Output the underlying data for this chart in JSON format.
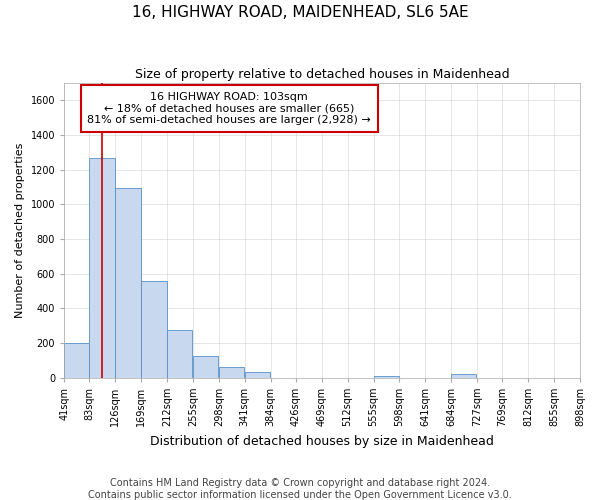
{
  "title": "16, HIGHWAY ROAD, MAIDENHEAD, SL6 5AE",
  "subtitle": "Size of property relative to detached houses in Maidenhead",
  "xlabel": "Distribution of detached houses by size in Maidenhead",
  "ylabel": "Number of detached properties",
  "footnote1": "Contains HM Land Registry data © Crown copyright and database right 2024.",
  "footnote2": "Contains public sector information licensed under the Open Government Licence v3.0.",
  "property_size": 103,
  "property_label": "16 HIGHWAY ROAD: 103sqm",
  "annotation_line1": "← 18% of detached houses are smaller (665)",
  "annotation_line2": "81% of semi-detached houses are larger (2,928) →",
  "bin_edges": [
    41,
    83,
    126,
    169,
    212,
    255,
    298,
    341,
    384,
    426,
    469,
    512,
    555,
    598,
    641,
    684,
    727,
    769,
    812,
    855,
    898
  ],
  "bar_heights": [
    200,
    1270,
    1095,
    555,
    275,
    125,
    60,
    30,
    0,
    0,
    0,
    0,
    10,
    0,
    0,
    20,
    0,
    0,
    0,
    0
  ],
  "bar_color": "#c8d8ee",
  "bar_edge_color": "#5590c8",
  "line_color": "#cc0000",
  "ylim": [
    0,
    1700
  ],
  "yticks": [
    0,
    200,
    400,
    600,
    800,
    1000,
    1200,
    1400,
    1600
  ],
  "background_color": "#ffffff",
  "plot_bg_color": "#ffffff",
  "grid_color": "#cccccc",
  "annotation_box_color": "#ffffff",
  "annotation_box_edge": "#cc0000",
  "title_fontsize": 11,
  "subtitle_fontsize": 9,
  "ylabel_fontsize": 8,
  "xlabel_fontsize": 9,
  "tick_fontsize": 7,
  "annotation_fontsize": 8,
  "footnote_fontsize": 7
}
